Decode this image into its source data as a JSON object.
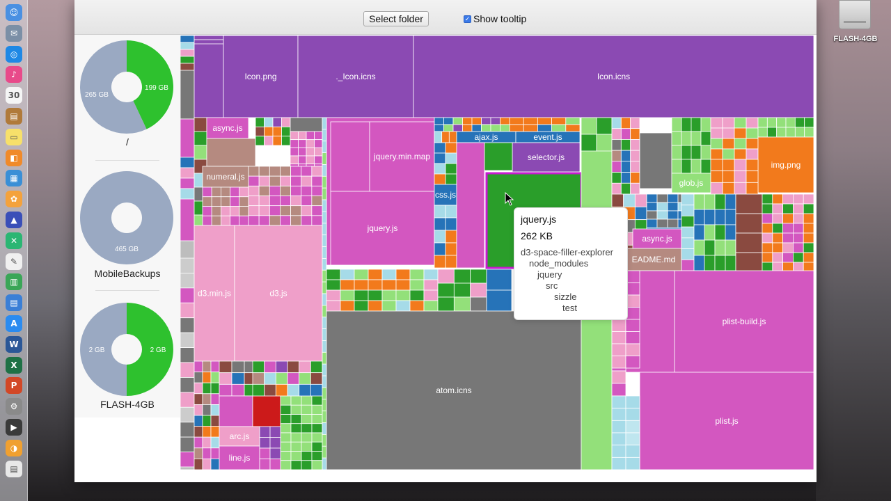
{
  "toolbar": {
    "select_folder_label": "Select folder",
    "show_tooltip_label": "Show tooltip",
    "show_tooltip_checked": true
  },
  "desktop": {
    "drive_label": "FLASH-4GB"
  },
  "dock": {
    "items": [
      "finder-icon",
      "preview-icon",
      "safari-icon",
      "itunes-icon",
      "calendar-icon",
      "notes-icon",
      "stickies-icon",
      "ibooks-icon",
      "preview-2-icon",
      "photos-icon",
      "affinity-icon",
      "xcode-icon",
      "textedit-icon",
      "numbers-icon",
      "keynote-icon",
      "appstore-icon",
      "word-icon",
      "excel-icon",
      "powerpoint-icon",
      "system-preferences-icon",
      "movie-icon",
      "disk-usage-icon",
      "document-icon"
    ]
  },
  "disks": [
    {
      "name": "/",
      "used_label": "199 GB",
      "free_label": "265 GB",
      "used_fraction": 0.43
    },
    {
      "name": "MobileBackups",
      "used_label": "",
      "free_label": "465 GB",
      "used_fraction": 0.0
    },
    {
      "name": "FLASH-4GB",
      "used_label": "2 GB",
      "free_label": "2 GB",
      "used_fraction": 0.5
    }
  ],
  "colors": {
    "used": "#2ec12e",
    "free": "#9aa9c2",
    "purple": "#8b4ab3",
    "magenta": "#d357c0",
    "pink": "#ef9fc9",
    "gray": "#777777",
    "light_green": "#93e07a",
    "green": "#2a9e2a",
    "orange": "#f27a1c",
    "brown": "#8a4a40",
    "blue": "#2673b8",
    "light_blue": "#a6dbe8",
    "red": "#cc1a1a",
    "tan": "#b58a80"
  },
  "treemap": {
    "labels": {
      "icon_png": "Icon.png",
      "icon_icns_small": "._Icon.icns",
      "icon_icns": "Icon.icns",
      "async_js": "async.js",
      "numeral_js": "numeral.js",
      "jquery_min_map": "jquery.min.map",
      "jquery_js_file": "jquery.js",
      "ajax_js": "ajax.js",
      "event_js": "event.js",
      "selector_js": "selector.js",
      "css_js": "css.js",
      "glob_js": "glob.js",
      "img_png": "img.png",
      "async_js_2": "async.js",
      "readme_md": "EADME.md",
      "d3_min_js": "d3.min.js",
      "d3_js": "d3.js",
      "plist_build_js": "plist-build.js",
      "plist_js": "plist.js",
      "atom_icns": "atom.icns",
      "arc_js": "arc.js",
      "line_js": "line.js"
    }
  },
  "tooltip": {
    "name": "jquery.js",
    "size": "262 KB",
    "path": [
      "d3-space-filler-explorer",
      "node_modules",
      "jquery",
      "src",
      "sizzle",
      "test"
    ]
  }
}
